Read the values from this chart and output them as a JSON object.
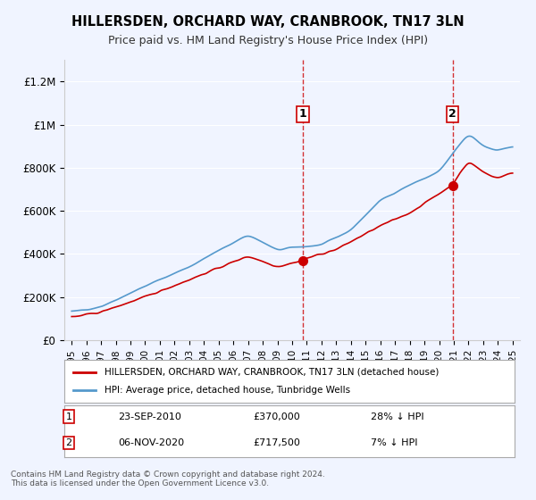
{
  "title": "HILLERSDEN, ORCHARD WAY, CRANBROOK, TN17 3LN",
  "subtitle": "Price paid vs. HM Land Registry's House Price Index (HPI)",
  "bg_color": "#f0f4ff",
  "plot_bg_color": "#f0f4ff",
  "sale1_date": "2010-09-23",
  "sale1_price": 370000,
  "sale1_label": "1",
  "sale1_pct": "28% ↓ HPI",
  "sale2_date": "2020-11-06",
  "sale2_price": 717500,
  "sale2_label": "2",
  "sale2_pct": "7% ↓ HPI",
  "red_line_color": "#cc0000",
  "blue_line_color": "#5599cc",
  "dashed_line_color": "#cc0000",
  "legend_house": "HILLERSDEN, ORCHARD WAY, CRANBROOK, TN17 3LN (detached house)",
  "legend_hpi": "HPI: Average price, detached house, Tunbridge Wells",
  "footer": "Contains HM Land Registry data © Crown copyright and database right 2024.\nThis data is licensed under the Open Government Licence v3.0.",
  "ylim": [
    0,
    1300000
  ],
  "yticks": [
    0,
    200000,
    400000,
    600000,
    800000,
    1000000,
    1200000
  ],
  "ytick_labels": [
    "£0",
    "£200K",
    "£400K",
    "£600K",
    "£800K",
    "£1M",
    "£1.2M"
  ]
}
